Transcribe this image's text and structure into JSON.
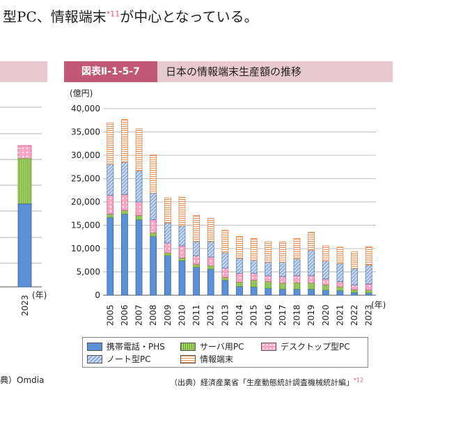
{
  "intro": {
    "text": "型PC、情報端末",
    "footnote": "*11",
    "text_after": "が中心となっている。"
  },
  "title": {
    "badge": "図表Ⅱ-1-5-7",
    "text": "日本の情報端末生産額の推移"
  },
  "left_panel": {
    "year_label": "2023",
    "unit_label": "(年)",
    "source_text": "典）Omdia"
  },
  "source": {
    "text": "（出典）経済産業省「生産動態統計調査機械統計編」",
    "footnote": "*12"
  },
  "colors": {
    "mobile": "#5b8fd6",
    "server": "#a8d36c",
    "desktop": "#f7a6c6",
    "notebook": "#c5d6ee",
    "info": "#f9caa6",
    "notebook_hatch": "#6a8fc8",
    "info_hatch": "#e8935a",
    "server_hatch": "#5f9e2a",
    "desktop_dot": "#ffffff"
  },
  "chart_data": {
    "type": "bar",
    "stacked": true,
    "title": "日本の情報端末生産額の推移",
    "ylabel": "(億円)",
    "xlabel": "(年)",
    "ylim": [
      0,
      40000
    ],
    "yticks": [
      "0",
      "5,000",
      "10,000",
      "15,000",
      "20,000",
      "25,000",
      "30,000",
      "35,000",
      "40,000"
    ],
    "grid": true,
    "legend_position": "bottom",
    "categories": [
      "2005",
      "2006",
      "2007",
      "2008",
      "2009",
      "2010",
      "2011",
      "2012",
      "2013",
      "2014",
      "2015",
      "2016",
      "2017",
      "2018",
      "2019",
      "2020",
      "2021",
      "2022",
      "2023"
    ],
    "series": [
      {
        "key": "mobile",
        "name": "携帯電話・PHS",
        "values": [
          16700,
          17400,
          16200,
          12600,
          8500,
          7400,
          6000,
          5600,
          3200,
          1900,
          1800,
          1500,
          1300,
          1300,
          1300,
          1100,
          1000,
          600,
          500
        ]
      },
      {
        "key": "server",
        "name": "サーバ用PC",
        "values": [
          700,
          800,
          900,
          800,
          600,
          600,
          600,
          700,
          600,
          900,
          1400,
          1400,
          1300,
          1400,
          1300,
          1100,
          800,
          600,
          600
        ]
      },
      {
        "key": "desktop",
        "name": "デスクトップ型PC",
        "values": [
          4000,
          3400,
          2900,
          2800,
          2100,
          2600,
          1800,
          1900,
          2000,
          1900,
          1500,
          1300,
          1400,
          1500,
          1600,
          1300,
          1100,
          1000,
          1300
        ]
      },
      {
        "key": "notebook",
        "name": "ノート型PC",
        "values": [
          6700,
          6900,
          6700,
          5700,
          4300,
          4300,
          3100,
          3300,
          3300,
          3200,
          2800,
          2900,
          3100,
          3600,
          5400,
          3800,
          3900,
          3500,
          4100
        ]
      },
      {
        "key": "info",
        "name": "情報端末",
        "values": [
          8900,
          9200,
          9000,
          8200,
          5400,
          6100,
          5600,
          5000,
          4800,
          4700,
          4700,
          4400,
          4300,
          4400,
          3900,
          3300,
          3500,
          3600,
          3900
        ]
      }
    ]
  }
}
